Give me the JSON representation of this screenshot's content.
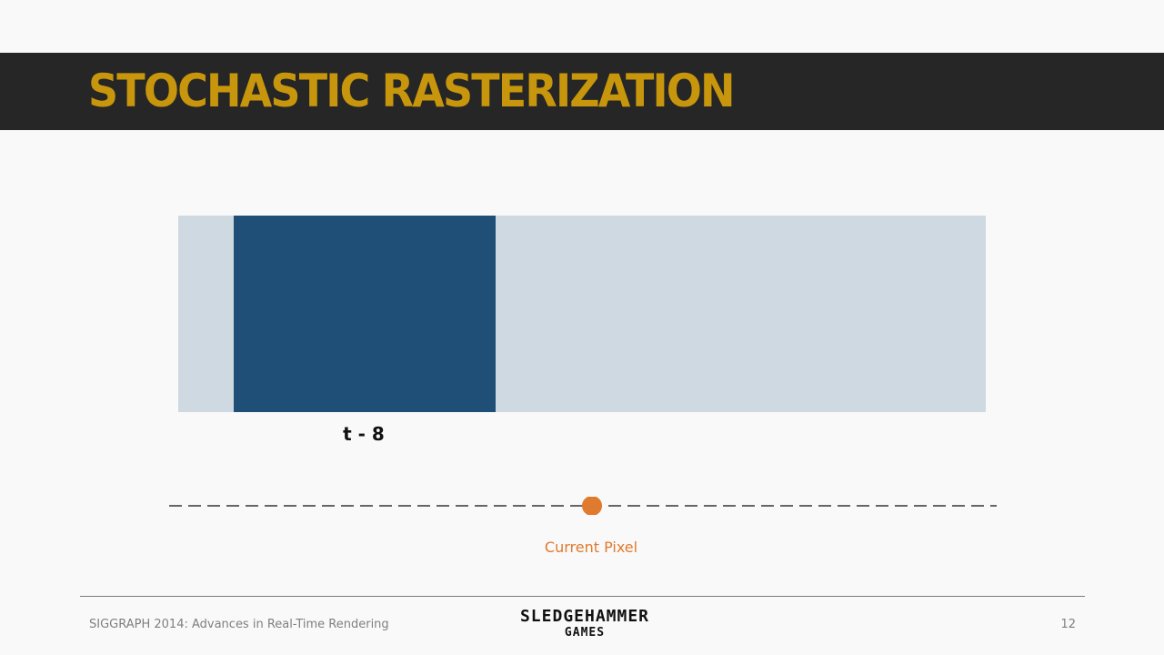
{
  "slide": {
    "title": "STOCHASTIC RASTERIZATION",
    "time_label": "t - 8",
    "pixel_caption": "Current Pixel",
    "page_number": "12"
  },
  "footer": {
    "conference": "SIGGRAPH 2014: Advances in Real-Time Rendering",
    "logo_line1": "SLEDGEHAMMER",
    "logo_line2": "GAMES"
  },
  "colors": {
    "title": "#c8960c",
    "title_bar": "#262626",
    "region": "#cfd9e2",
    "block": "#1f4e77",
    "pixel": "#e07a2e",
    "dashed_line": "#666666"
  }
}
